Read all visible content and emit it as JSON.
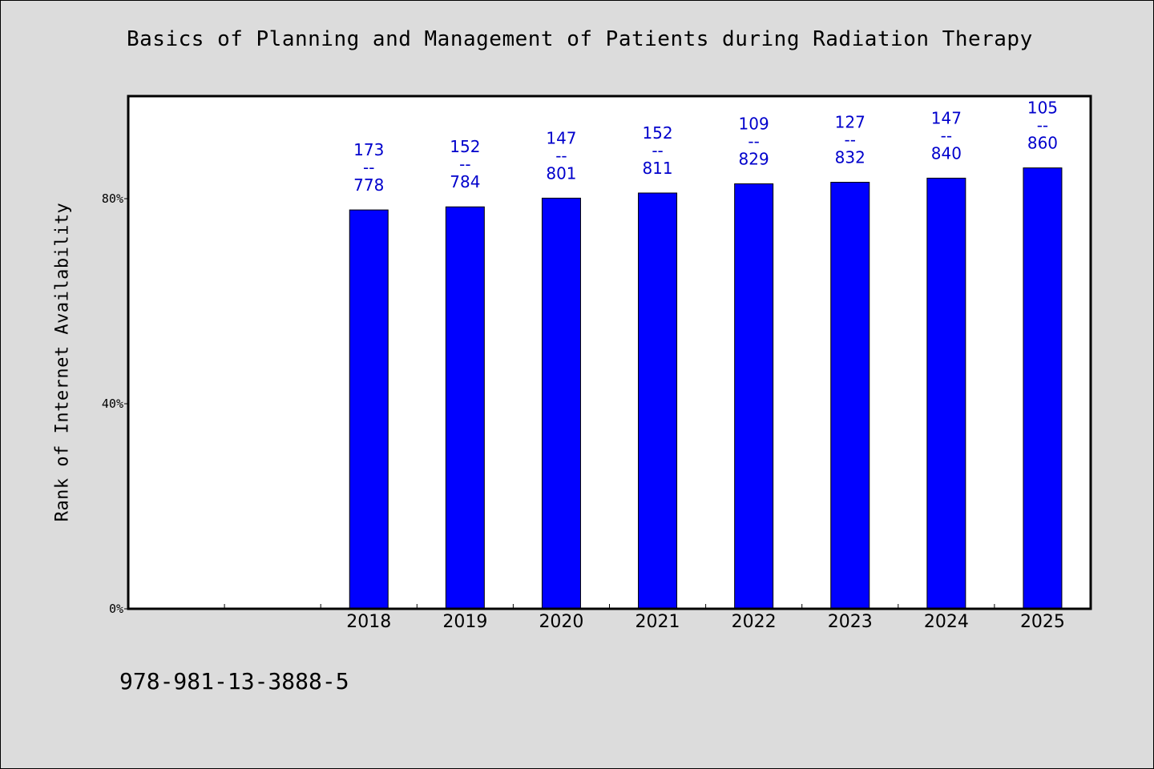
{
  "chart_data": {
    "type": "bar",
    "title": "Basics of Planning and Management of Patients during Radiation Therapy",
    "xlabel": "",
    "ylabel": "Rank of Internet Availability",
    "categories": [
      "",
      "",
      "2018",
      "2019",
      "2020",
      "2021",
      "2022",
      "2023",
      "2024",
      "2025"
    ],
    "values": [
      null,
      null,
      77.8,
      78.4,
      80.1,
      81.1,
      82.9,
      83.2,
      84.0,
      86.0
    ],
    "bar_labels": [
      null,
      null,
      [
        "173",
        "--",
        "778"
      ],
      [
        "152",
        "--",
        "784"
      ],
      [
        "147",
        "--",
        "801"
      ],
      [
        "152",
        "--",
        "811"
      ],
      [
        "109",
        "--",
        "829"
      ],
      [
        "127",
        "--",
        "832"
      ],
      [
        "147",
        "--",
        "840"
      ],
      [
        "105",
        "--",
        "860"
      ]
    ],
    "yticks": [
      {
        "value": 0,
        "label": "0%"
      },
      {
        "value": 40,
        "label": "40%"
      },
      {
        "value": 80,
        "label": "80%"
      }
    ],
    "ylim": [
      0,
      100
    ],
    "grid": false,
    "legend": "none",
    "bar_color": "#0000ff",
    "label_color": "#0000cc"
  },
  "footer": {
    "isbn": "978-981-13-3888-5"
  }
}
